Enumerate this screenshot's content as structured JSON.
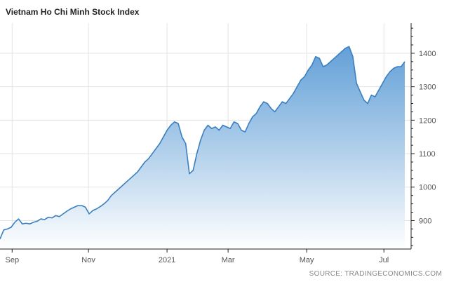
{
  "chart_data": {
    "type": "area",
    "title": "Vietnam Ho Chi Minh Stock Index",
    "source": "SOURCE: TRADINGECONOMICS.COM",
    "xlabel": "",
    "ylabel": "",
    "x_ticks": [
      "Sep",
      "Nov",
      "2021",
      "Mar",
      "May",
      "Jul"
    ],
    "x_tick_pos": [
      0.027,
      0.197,
      0.372,
      0.508,
      0.683,
      0.855
    ],
    "y_ticks": [
      900,
      1000,
      1100,
      1200,
      1300,
      1400
    ],
    "ylim": [
      815,
      1490
    ],
    "grid": true,
    "colors": {
      "line": "#3a7fc1",
      "fill_top": "#5b9bd5",
      "fill_bottom": "#ffffff",
      "grid": "#e3e3e3",
      "axis": "#222222"
    },
    "series": [
      {
        "values": [
          845,
          872,
          875,
          880,
          895,
          905,
          890,
          892,
          890,
          895,
          898,
          905,
          903,
          910,
          908,
          915,
          912,
          920,
          928,
          935,
          940,
          945,
          945,
          940,
          920,
          930,
          935,
          942,
          950,
          960,
          975,
          985,
          995,
          1005,
          1015,
          1025,
          1035,
          1045,
          1060,
          1075,
          1085,
          1100,
          1115,
          1130,
          1150,
          1170,
          1185,
          1195,
          1190,
          1150,
          1130,
          1040,
          1050,
          1100,
          1140,
          1170,
          1185,
          1175,
          1180,
          1170,
          1185,
          1180,
          1175,
          1195,
          1190,
          1170,
          1165,
          1190,
          1210,
          1220,
          1240,
          1255,
          1250,
          1235,
          1225,
          1240,
          1255,
          1250,
          1265,
          1280,
          1300,
          1320,
          1330,
          1350,
          1365,
          1390,
          1385,
          1360,
          1365,
          1375,
          1385,
          1395,
          1405,
          1415,
          1420,
          1390,
          1310,
          1285,
          1260,
          1250,
          1275,
          1270,
          1290,
          1310,
          1330,
          1345,
          1355,
          1360,
          1360,
          1375
        ]
      }
    ]
  }
}
